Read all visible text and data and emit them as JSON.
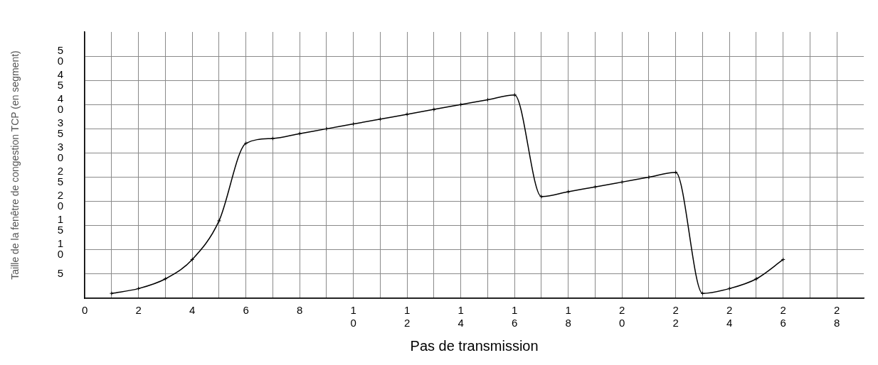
{
  "chart_data": {
    "type": "line",
    "xlabel": "Pas de transmission",
    "ylabel": "Taille de la fenêtre de congestion TCP (en segment)",
    "series": [
      {
        "color": "#000000",
        "x": [
          1,
          2,
          3,
          4,
          5,
          6,
          7,
          8,
          9,
          10,
          11,
          12,
          13,
          14,
          15,
          16,
          17,
          18,
          19,
          20,
          21,
          22,
          23,
          24,
          25,
          26
        ],
        "values": [
          1,
          2,
          4,
          8,
          16,
          32,
          33,
          34,
          35,
          36,
          37,
          38,
          39,
          40,
          41,
          42,
          21,
          22,
          23,
          24,
          25,
          26,
          1,
          2,
          4,
          8
        ]
      }
    ],
    "xlim": [
      0,
      29
    ],
    "xticks": [
      0,
      {
        "value": 1,
        "label": null
      },
      2,
      {
        "value": 3,
        "label": null
      },
      4,
      {
        "value": 5,
        "label": null
      },
      6,
      {
        "value": 7,
        "label": null
      },
      8,
      {
        "value": 9,
        "label": null
      },
      10,
      {
        "value": 11,
        "label": null
      },
      12,
      {
        "value": 13,
        "label": null
      },
      14,
      {
        "value": 15,
        "label": null
      },
      16,
      {
        "value": 17,
        "label": null
      },
      18,
      {
        "value": 19,
        "label": null
      },
      20,
      {
        "value": 21,
        "label": null
      },
      22,
      {
        "value": 23,
        "label": null
      },
      24,
      {
        "value": 25,
        "label": null
      },
      26,
      {
        "value": 27,
        "label": null
      },
      28
    ],
    "ylim": [
      0,
      55
    ],
    "yticks": [
      {
        "value": 0,
        "label": null
      },
      5,
      10,
      15,
      20,
      25,
      30,
      35,
      40,
      45,
      50
    ],
    "grid": true,
    "legend": false,
    "marker": "cross",
    "line_style": "solid"
  }
}
